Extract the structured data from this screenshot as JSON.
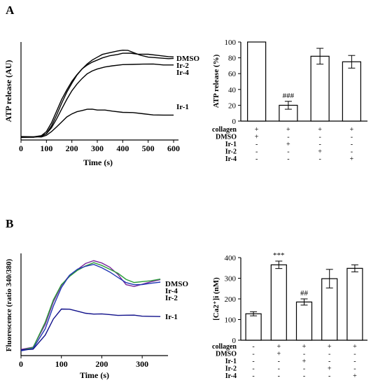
{
  "panels": {
    "A": {
      "letter": "A",
      "trace": {
        "chart_id": "A-trace",
        "type": "line",
        "xlabel": "Time (s)",
        "ylabel": "ATP release (AU)",
        "xlim": [
          0,
          600
        ],
        "ylim": [
          0,
          1
        ],
        "xticks": [
          "0",
          "100",
          "200",
          "300",
          "400",
          "500",
          "600"
        ],
        "series": [
          {
            "name": "DMSO",
            "color": "#000000",
            "x": [
              0,
              50,
              80,
              100,
              120,
              140,
              160,
              180,
              200,
              220,
              240,
              260,
              280,
              300,
              320,
              350,
              380,
              400,
              430,
              460,
              500,
              540,
              580,
              600
            ],
            "y": [
              0.03,
              0.03,
              0.04,
              0.08,
              0.17,
              0.29,
              0.41,
              0.51,
              0.6,
              0.67,
              0.73,
              0.77,
              0.8,
              0.82,
              0.84,
              0.86,
              0.87,
              0.88,
              0.88,
              0.87,
              0.87,
              0.86,
              0.85,
              0.85
            ]
          },
          {
            "name": "Ir-2",
            "color": "#000000",
            "x": [
              0,
              50,
              80,
              100,
              120,
              140,
              160,
              180,
              200,
              220,
              240,
              260,
              280,
              300,
              320,
              350,
              380,
              400,
              420,
              440,
              470,
              500,
              540,
              580,
              600
            ],
            "y": [
              0.03,
              0.03,
              0.04,
              0.07,
              0.15,
              0.26,
              0.38,
              0.49,
              0.58,
              0.66,
              0.72,
              0.77,
              0.81,
              0.84,
              0.87,
              0.89,
              0.91,
              0.92,
              0.92,
              0.9,
              0.87,
              0.85,
              0.84,
              0.83,
              0.83
            ]
          },
          {
            "name": "Ir-4",
            "color": "#000000",
            "x": [
              0,
              50,
              80,
              100,
              120,
              140,
              160,
              180,
              200,
              220,
              240,
              260,
              280,
              300,
              330,
              360,
              400,
              440,
              480,
              520,
              560,
              600
            ],
            "y": [
              0.03,
              0.03,
              0.04,
              0.06,
              0.12,
              0.21,
              0.31,
              0.41,
              0.5,
              0.57,
              0.63,
              0.68,
              0.71,
              0.73,
              0.75,
              0.76,
              0.77,
              0.77,
              0.77,
              0.77,
              0.76,
              0.76
            ]
          },
          {
            "name": "Ir-1",
            "color": "#000000",
            "x": [
              0,
              50,
              80,
              100,
              120,
              140,
              160,
              180,
              200,
              220,
              240,
              260,
              280,
              300,
              330,
              360,
              400,
              440,
              480,
              520,
              560,
              600
            ],
            "y": [
              0.03,
              0.03,
              0.03,
              0.05,
              0.09,
              0.14,
              0.19,
              0.24,
              0.27,
              0.29,
              0.3,
              0.31,
              0.31,
              0.3,
              0.3,
              0.29,
              0.28,
              0.28,
              0.27,
              0.26,
              0.26,
              0.26
            ]
          }
        ]
      },
      "bars": {
        "chart_id": "A-bars",
        "type": "bar",
        "ylabel": "ATP release (%)",
        "ylim": [
          0,
          100
        ],
        "yticks": [
          "0",
          "20",
          "40",
          "60",
          "80",
          "100"
        ],
        "values": [
          100,
          20,
          82,
          75
        ],
        "errors": [
          0,
          5,
          10,
          8
        ],
        "annotations": [
          "",
          "###",
          "",
          ""
        ]
      },
      "rows": [
        {
          "label": "collagen",
          "signs": [
            "+",
            "+",
            "+",
            "+"
          ]
        },
        {
          "label": "DMSO",
          "signs": [
            "+",
            "-",
            "-",
            "-"
          ]
        },
        {
          "label": "Ir-1",
          "signs": [
            "-",
            "+",
            "-",
            "-"
          ]
        },
        {
          "label": "Ir-2",
          "signs": [
            "-",
            "-",
            "+",
            "-"
          ]
        },
        {
          "label": "Ir-4",
          "signs": [
            "-",
            "-",
            "-",
            "+"
          ]
        }
      ]
    },
    "B": {
      "letter": "B",
      "trace": {
        "chart_id": "B-trace",
        "type": "line",
        "xlabel": "Time (s)",
        "ylabel": "Fluorescence (ratio 340/380)",
        "xlim": [
          0,
          350
        ],
        "ylim": [
          0,
          1
        ],
        "xticks": [
          "0",
          "100",
          "200",
          "300"
        ],
        "series": [
          {
            "name": "DMSO",
            "color": "#7a2a9c",
            "x": [
              0,
              30,
              60,
              80,
              100,
              120,
              140,
              160,
              180,
              200,
              220,
              240,
              260,
              280,
              300,
              320,
              345
            ],
            "y": [
              0.06,
              0.08,
              0.3,
              0.52,
              0.68,
              0.78,
              0.84,
              0.9,
              0.93,
              0.91,
              0.87,
              0.8,
              0.7,
              0.68,
              0.7,
              0.72,
              0.74
            ]
          },
          {
            "name": "Ir-4",
            "color": "#2a9c3a",
            "x": [
              0,
              30,
              60,
              80,
              100,
              120,
              140,
              160,
              180,
              200,
              220,
              240,
              260,
              280,
              300,
              320,
              345
            ],
            "y": [
              0.05,
              0.08,
              0.33,
              0.55,
              0.7,
              0.78,
              0.84,
              0.88,
              0.91,
              0.88,
              0.84,
              0.8,
              0.74,
              0.71,
              0.72,
              0.73,
              0.75
            ]
          },
          {
            "name": "Ir-2",
            "color": "#2238b4",
            "x": [
              0,
              30,
              60,
              80,
              100,
              120,
              140,
              160,
              180,
              200,
              220,
              240,
              260,
              280,
              300,
              320,
              345
            ],
            "y": [
              0.05,
              0.07,
              0.26,
              0.48,
              0.66,
              0.78,
              0.84,
              0.87,
              0.89,
              0.86,
              0.82,
              0.77,
              0.72,
              0.7,
              0.7,
              0.71,
              0.72
            ]
          },
          {
            "name": "Ir-1",
            "color": "#10108a",
            "x": [
              0,
              30,
              60,
              80,
              100,
              120,
              140,
              160,
              180,
              200,
              220,
              240,
              260,
              280,
              300,
              320,
              345
            ],
            "y": [
              0.05,
              0.06,
              0.2,
              0.36,
              0.46,
              0.46,
              0.44,
              0.42,
              0.41,
              0.41,
              0.4,
              0.39,
              0.39,
              0.39,
              0.38,
              0.38,
              0.38
            ]
          }
        ]
      },
      "bars": {
        "chart_id": "B-bars",
        "type": "bar",
        "ylabel": "[Ca2⁺]i (nM)",
        "ylim": [
          0,
          400
        ],
        "yticks": [
          "0",
          "100",
          "200",
          "300",
          "400"
        ],
        "values": [
          128,
          365,
          185,
          298,
          348
        ],
        "errors": [
          10,
          18,
          15,
          45,
          17
        ],
        "annotations": [
          "",
          "***",
          "##",
          "",
          ""
        ]
      },
      "rows": [
        {
          "label": "collagen",
          "signs": [
            "-",
            "+",
            "+",
            "+",
            "+"
          ]
        },
        {
          "label": "DMSO",
          "signs": [
            "-",
            "+",
            "-",
            "-",
            "-"
          ]
        },
        {
          "label": "Ir-1",
          "signs": [
            "-",
            "-",
            "+",
            "-",
            "-"
          ]
        },
        {
          "label": "Ir-2",
          "signs": [
            "-",
            "-",
            "-",
            "+",
            "-"
          ]
        },
        {
          "label": "Ir-4",
          "signs": [
            "-",
            "-",
            "-",
            "-",
            "+"
          ]
        }
      ]
    }
  }
}
